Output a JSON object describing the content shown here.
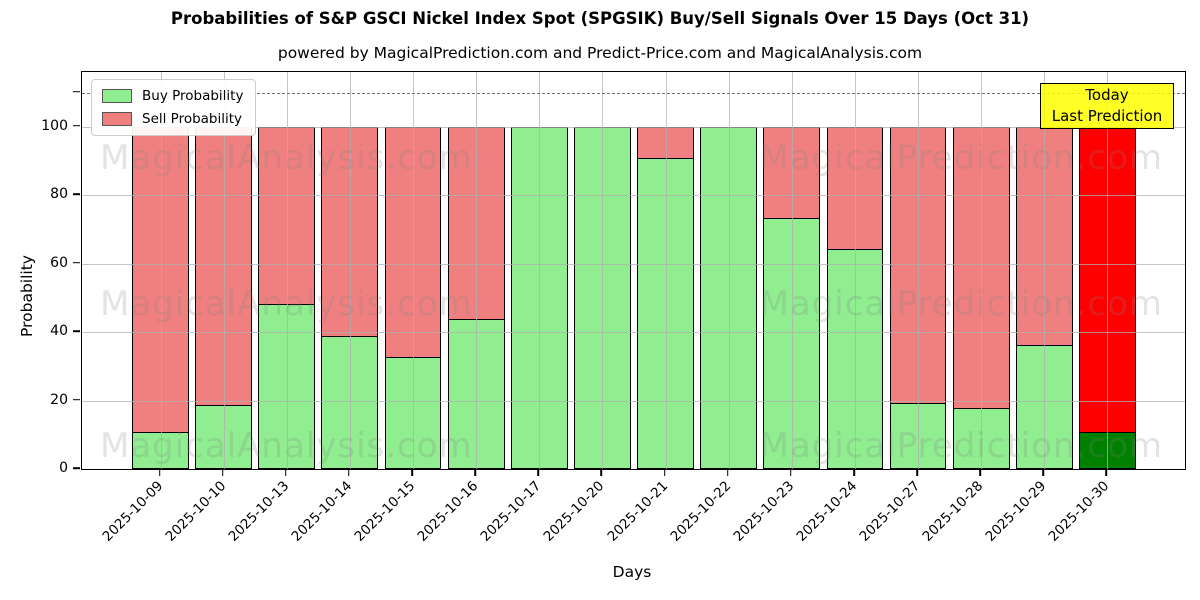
{
  "title": "Probabilities of S&P GSCI Nickel Index Spot (SPGSIK) Buy/Sell Signals Over 15 Days (Oct 31)",
  "subtitle": "powered by MagicalPrediction.com and Predict-Price.com and MagicalAnalysis.com",
  "legend": {
    "buy_label": "Buy Probability",
    "sell_label": "Sell Probability"
  },
  "annotation": {
    "line1": "Today",
    "line2": "Last Prediction"
  },
  "watermarks": {
    "left": "MagicalAnalysis.com",
    "right": "MagicalPrediction.com"
  },
  "colors": {
    "buy": "#90EE90",
    "sell": "#F08080",
    "last_buy": "#008000",
    "last_sell": "#FF0000",
    "annotation_bg": "#FFFF00",
    "bar_edge": "#000000"
  },
  "chart_data": {
    "type": "bar",
    "stacked": true,
    "title": "Probabilities of S&P GSCI Nickel Index Spot (SPGSIK) Buy/Sell Signals Over 15 Days (Oct 31)",
    "xlabel": "Days",
    "ylabel": "Probability",
    "categories": [
      "2025-10-09",
      "2025-10-10",
      "2025-10-13",
      "2025-10-14",
      "2025-10-15",
      "2025-10-16",
      "2025-10-17",
      "2025-10-20",
      "2025-10-21",
      "2025-10-22",
      "2025-10-23",
      "2025-10-24",
      "2025-10-27",
      "2025-10-28",
      "2025-10-29",
      "2025-10-30"
    ],
    "series": [
      {
        "name": "Buy Probability",
        "values": [
          11,
          19,
          48.5,
          39,
          33,
          44,
          100,
          100,
          91,
          100,
          73.5,
          64.5,
          19.5,
          18,
          36.5,
          11
        ]
      },
      {
        "name": "Sell Probability",
        "values": [
          89,
          81,
          51.5,
          61,
          67,
          56,
          0,
          0,
          9,
          0,
          26.5,
          35.5,
          80.5,
          82,
          63.5,
          89
        ]
      }
    ],
    "yticks": [
      0,
      20,
      40,
      60,
      80,
      100
    ],
    "ylim": [
      0,
      116
    ],
    "dashed_line_y": 110,
    "grid": true,
    "legend_position": "upper left",
    "highlight_last_bar": true
  }
}
